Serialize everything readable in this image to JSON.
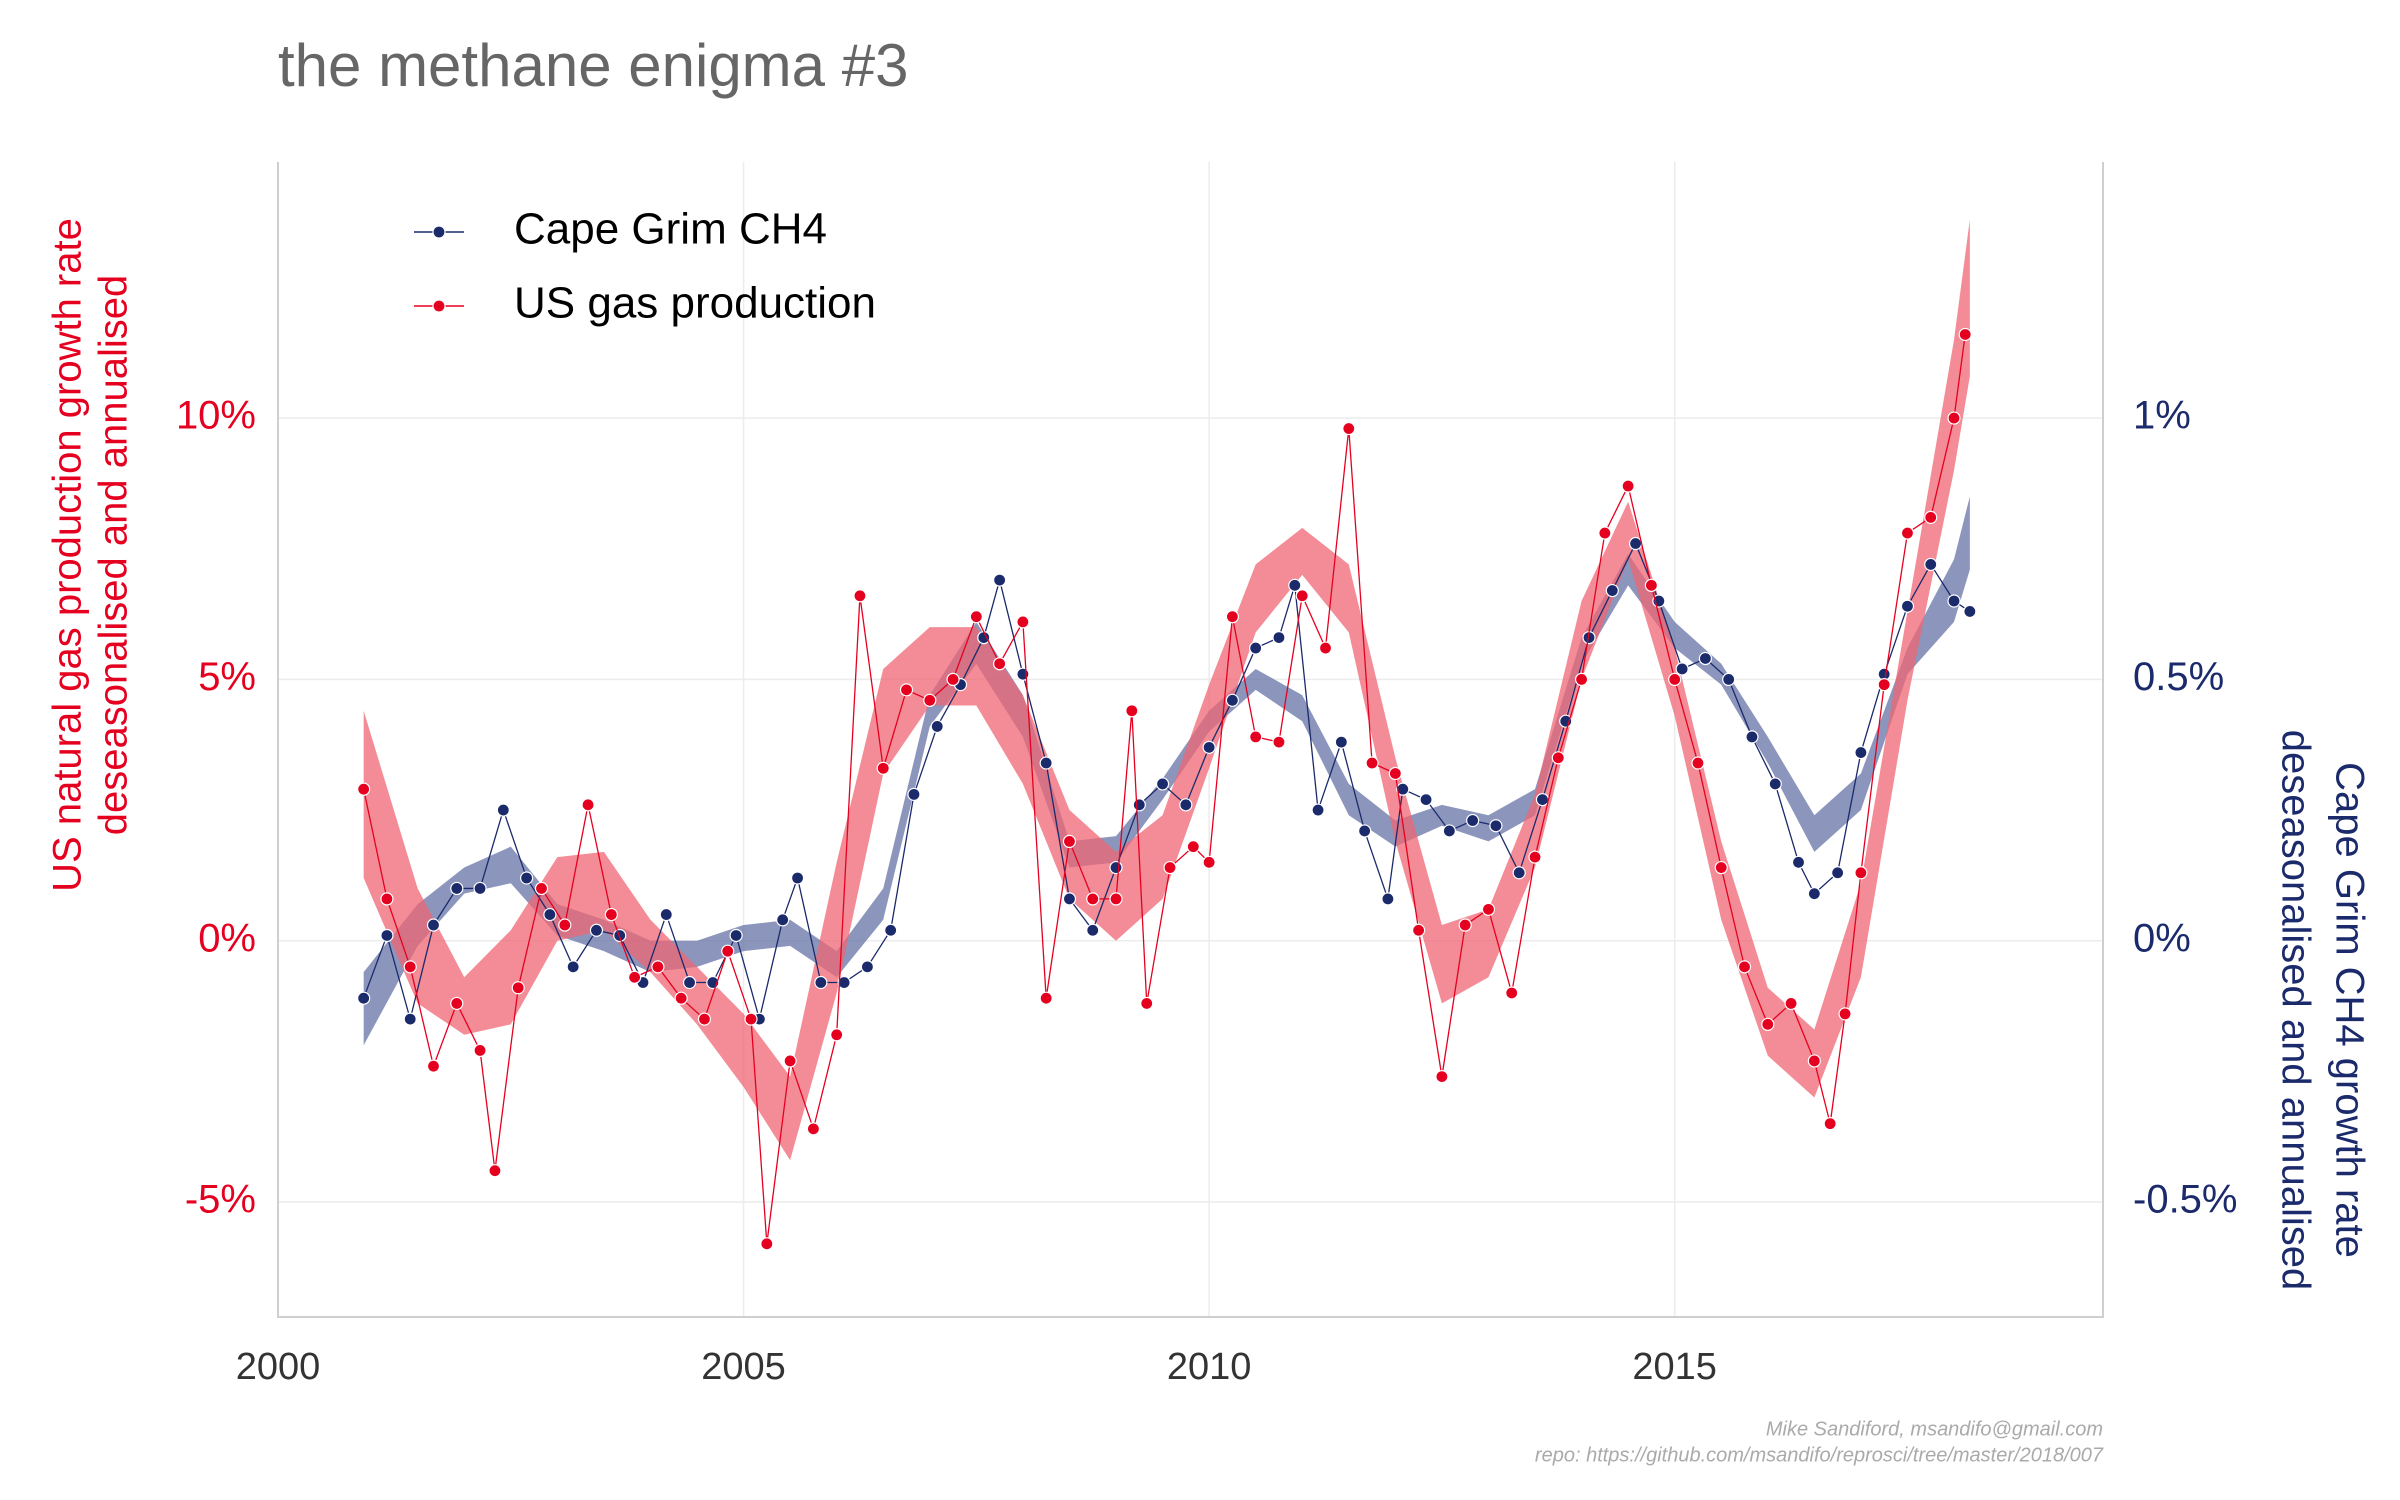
{
  "chart_data": {
    "type": "line",
    "title": "the methane enigma #3",
    "ylabel": [
      "US natural gas production growth rate",
      "deseasonalised and annualised"
    ],
    "y2label": [
      "Cape Grim CH4 growth rate",
      "deseasonalised and annualised"
    ],
    "caption": [
      "Mike Sandiford, msandifo@gmail.com",
      "repo: https://github.com/msandifo/reprosci/tree/master/2018/007"
    ],
    "xlim": [
      2000,
      2019.6
    ],
    "xticks": [
      2000,
      2005,
      2010,
      2015
    ],
    "ylim": [
      -7.2,
      14.9
    ],
    "yticks": [
      {
        "value": -5,
        "label": "-5%"
      },
      {
        "value": 0,
        "label": "0%"
      },
      {
        "value": 5,
        "label": "5%"
      },
      {
        "value": 10,
        "label": "10%"
      }
    ],
    "y2lim": [
      -0.72,
      1.49
    ],
    "y2ticks": [
      {
        "value": -0.5,
        "label": "-0.5%"
      },
      {
        "value": 0,
        "label": "0%"
      },
      {
        "value": 0.5,
        "label": "0.5%"
      },
      {
        "value": 1,
        "label": "1%"
      }
    ],
    "grid": true,
    "legend": "top-left",
    "series": [
      {
        "name": "Cape Grim CH4",
        "color": "#1b2a6b",
        "axis": "y2",
        "x": [
          2000.92,
          2001.17,
          2001.42,
          2001.67,
          2001.92,
          2002.17,
          2002.42,
          2002.67,
          2002.92,
          2003.17,
          2003.42,
          2003.67,
          2003.92,
          2004.17,
          2004.42,
          2004.67,
          2004.92,
          2005.17,
          2005.42,
          2005.58,
          2005.83,
          2006.08,
          2006.33,
          2006.58,
          2006.83,
          2007.08,
          2007.33,
          2007.58,
          2007.75,
          2008.0,
          2008.25,
          2008.5,
          2008.75,
          2009.0,
          2009.25,
          2009.5,
          2009.75,
          2010.0,
          2010.25,
          2010.5,
          2010.75,
          2010.92,
          2011.17,
          2011.42,
          2011.67,
          2011.92,
          2012.08,
          2012.33,
          2012.58,
          2012.83,
          2013.08,
          2013.33,
          2013.58,
          2013.83,
          2014.08,
          2014.33,
          2014.58,
          2014.83,
          2015.08,
          2015.33,
          2015.58,
          2015.83,
          2016.08,
          2016.33,
          2016.5,
          2016.75,
          2017.0,
          2017.25,
          2017.5,
          2017.75,
          2018.0,
          2018.17
        ],
        "values": [
          -0.11,
          0.01,
          -0.15,
          0.03,
          0.1,
          0.1,
          0.25,
          0.12,
          0.05,
          -0.05,
          0.02,
          0.01,
          -0.08,
          0.05,
          -0.08,
          -0.08,
          0.01,
          -0.15,
          0.04,
          0.12,
          -0.08,
          -0.08,
          -0.05,
          0.02,
          0.28,
          0.41,
          0.49,
          0.58,
          0.69,
          0.51,
          0.34,
          0.08,
          0.02,
          0.14,
          0.26,
          0.3,
          0.26,
          0.37,
          0.46,
          0.56,
          0.58,
          0.68,
          0.25,
          0.38,
          0.21,
          0.08,
          0.29,
          0.27,
          0.21,
          0.23,
          0.22,
          0.13,
          0.27,
          0.42,
          0.58,
          0.67,
          0.76,
          0.65,
          0.52,
          0.54,
          0.5,
          0.39,
          0.3,
          0.15,
          0.09,
          0.13,
          0.36,
          0.51,
          0.64,
          0.72,
          0.65,
          0.63
        ],
        "band": {
          "color": "#6673a6",
          "x": [
            2000.92,
            2001.5,
            2002.0,
            2002.5,
            2003.0,
            2003.5,
            2004.0,
            2004.5,
            2005.0,
            2005.5,
            2006.0,
            2006.5,
            2007.0,
            2007.5,
            2008.0,
            2008.5,
            2009.0,
            2009.5,
            2010.0,
            2010.5,
            2011.0,
            2011.5,
            2012.0,
            2012.5,
            2013.0,
            2013.5,
            2014.0,
            2014.5,
            2015.0,
            2015.5,
            2016.0,
            2016.5,
            2017.0,
            2017.5,
            2018.0,
            2018.17
          ],
          "lower": [
            -0.2,
            -0.01,
            0.09,
            0.11,
            0.01,
            -0.02,
            -0.06,
            -0.05,
            -0.02,
            -0.01,
            -0.07,
            0.04,
            0.41,
            0.53,
            0.39,
            0.14,
            0.15,
            0.27,
            0.4,
            0.48,
            0.42,
            0.24,
            0.18,
            0.22,
            0.19,
            0.24,
            0.53,
            0.68,
            0.56,
            0.49,
            0.34,
            0.17,
            0.25,
            0.51,
            0.61,
            0.71
          ],
          "upper": [
            -0.06,
            0.07,
            0.14,
            0.18,
            0.07,
            0.04,
            0.0,
            0.0,
            0.03,
            0.04,
            -0.02,
            0.1,
            0.47,
            0.61,
            0.47,
            0.19,
            0.2,
            0.31,
            0.44,
            0.52,
            0.47,
            0.3,
            0.23,
            0.26,
            0.24,
            0.29,
            0.58,
            0.74,
            0.61,
            0.53,
            0.39,
            0.24,
            0.32,
            0.56,
            0.73,
            0.85
          ]
        }
      },
      {
        "name": "US gas production",
        "color": "#e60020",
        "x": [
          2000.92,
          2001.17,
          2001.42,
          2001.67,
          2001.92,
          2002.17,
          2002.33,
          2002.58,
          2002.83,
          2003.08,
          2003.33,
          2003.58,
          2003.83,
          2004.08,
          2004.33,
          2004.58,
          2004.83,
          2005.08,
          2005.25,
          2005.5,
          2005.75,
          2006.0,
          2006.25,
          2006.5,
          2006.75,
          2007.0,
          2007.25,
          2007.5,
          2007.75,
          2008.0,
          2008.25,
          2008.5,
          2008.75,
          2009.0,
          2009.17,
          2009.33,
          2009.58,
          2009.83,
          2010.0,
          2010.25,
          2010.5,
          2010.75,
          2011.0,
          2011.25,
          2011.5,
          2011.75,
          2012.0,
          2012.25,
          2012.5,
          2012.75,
          2013.0,
          2013.25,
          2013.5,
          2013.75,
          2014.0,
          2014.25,
          2014.5,
          2014.75,
          2015.0,
          2015.25,
          2015.5,
          2015.75,
          2016.0,
          2016.25,
          2016.5,
          2016.67,
          2016.83,
          2017.0,
          2017.25,
          2017.5,
          2017.75,
          2018.0,
          2018.12
        ],
        "values": [
          2.9,
          0.8,
          -0.5,
          -2.4,
          -1.2,
          -2.1,
          -4.4,
          -0.9,
          1.0,
          0.3,
          2.6,
          0.5,
          -0.7,
          -0.5,
          -1.1,
          -1.5,
          -0.2,
          -1.5,
          -5.8,
          -2.3,
          -3.6,
          -1.8,
          6.6,
          3.3,
          4.8,
          4.6,
          5.0,
          6.2,
          5.3,
          6.1,
          -1.1,
          1.9,
          0.8,
          0.8,
          4.4,
          -1.2,
          1.4,
          1.8,
          1.5,
          6.2,
          3.9,
          3.8,
          6.6,
          5.6,
          9.8,
          3.4,
          3.2,
          0.2,
          -2.6,
          0.3,
          0.6,
          -1.0,
          1.6,
          3.5,
          5.0,
          7.8,
          8.7,
          6.8,
          5.0,
          3.4,
          1.4,
          -0.5,
          -1.6,
          -1.2,
          -2.3,
          -3.5,
          -1.4,
          1.3,
          4.9,
          7.8,
          8.1,
          10.0,
          11.6
        ],
        "band": {
          "color": "#ef6673",
          "x": [
            2000.92,
            2001.5,
            2002.0,
            2002.5,
            2003.0,
            2003.5,
            2004.0,
            2004.5,
            2005.0,
            2005.5,
            2006.0,
            2006.5,
            2007.0,
            2007.5,
            2008.0,
            2008.5,
            2009.0,
            2009.5,
            2010.0,
            2010.5,
            2011.0,
            2011.5,
            2012.0,
            2012.5,
            2013.0,
            2013.5,
            2014.0,
            2014.5,
            2015.0,
            2015.5,
            2016.0,
            2016.5,
            2017.0,
            2017.5,
            2018.0,
            2018.17
          ],
          "lower": [
            1.2,
            -1.2,
            -1.8,
            -1.6,
            0.0,
            0.2,
            -0.6,
            -1.6,
            -2.8,
            -4.2,
            -1.0,
            3.2,
            4.5,
            4.5,
            3.0,
            0.8,
            0.0,
            0.8,
            3.3,
            5.9,
            7.0,
            5.9,
            1.9,
            -1.2,
            -0.7,
            1.4,
            5.0,
            7.3,
            4.3,
            0.4,
            -2.2,
            -3.0,
            -0.7,
            4.6,
            9.0,
            10.8
          ],
          "upper": [
            4.4,
            1.0,
            -0.7,
            0.2,
            1.6,
            1.7,
            0.4,
            -0.5,
            -1.4,
            -2.6,
            1.5,
            5.2,
            6.0,
            6.0,
            4.7,
            2.5,
            1.7,
            2.4,
            4.9,
            7.2,
            7.9,
            7.2,
            3.5,
            0.3,
            0.6,
            2.8,
            6.5,
            8.4,
            5.6,
            1.9,
            -0.9,
            -1.7,
            1.1,
            6.3,
            11.5,
            13.8
          ]
        }
      }
    ]
  }
}
